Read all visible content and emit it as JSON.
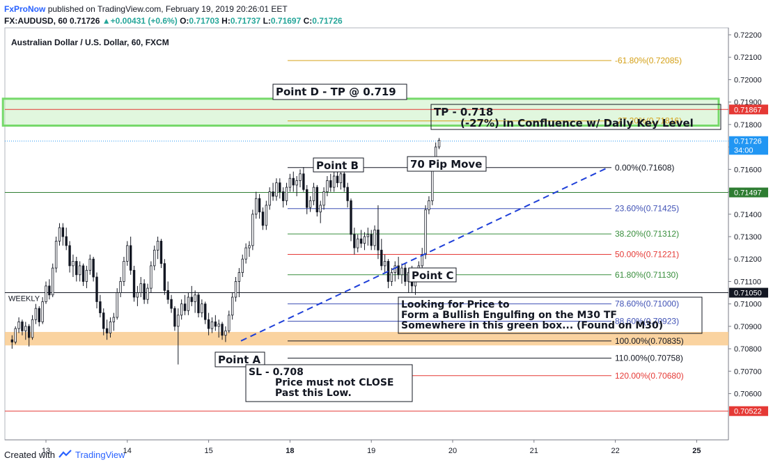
{
  "header": {
    "brand": "FxProNow",
    "published": "published on TradingView.com, February 19, 2019 20:26:01 EET",
    "symbol": "FX:AUDUSD, 60",
    "last": "0.71726",
    "change": "+0.00431 (+0.6%)",
    "o_label": "O:",
    "o": "0.71703",
    "h_label": "H:",
    "h": "0.71737",
    "l_label": "L:",
    "l": "0.71697",
    "c_label": "C:",
    "c": "0.71726"
  },
  "footer": {
    "created_with": "Created with",
    "brand": "TradingView"
  },
  "chart_data": {
    "type": "candlestick",
    "title": "Australian Dollar / U.S. Dollar, 60, FXCM",
    "ylim": [
      0.7051,
      0.7224
    ],
    "y_ticks": [
      "0.72200",
      "0.72100",
      "0.72000",
      "0.71900",
      "0.71800",
      "0.71700",
      "0.71600",
      "0.71500",
      "0.71400",
      "0.71300",
      "0.71200",
      "0.71100",
      "0.71000",
      "0.70900",
      "0.70800",
      "0.70700",
      "0.70600"
    ],
    "x_ticks": [
      {
        "label": "13",
        "x": 0
      },
      {
        "label": "14",
        "x": 24
      },
      {
        "label": "15",
        "x": 48
      },
      {
        "label": "18",
        "x": 72
      },
      {
        "label": "19",
        "x": 96
      },
      {
        "label": "20",
        "x": 120
      },
      {
        "label": "21",
        "x": 144
      },
      {
        "label": "22",
        "x": 168
      },
      {
        "label": "25",
        "x": 192
      }
    ],
    "xlim": [
      -10.5,
      204
    ],
    "price_tags": [
      {
        "label": "0.71867",
        "value": 0.71867,
        "color": "#e53935"
      },
      {
        "label": "0.71726",
        "value": 0.71726,
        "color": "#2196f3"
      },
      {
        "label": "34:00",
        "value": 0.71687,
        "color": "#2196f3"
      },
      {
        "label": "0.71497",
        "value": 0.71497,
        "color": "#2e7d32"
      },
      {
        "label": "0.71050",
        "value": 0.7105,
        "color": "#131722"
      },
      {
        "label": "0.70522",
        "value": 0.70522,
        "color": "#e53935"
      }
    ],
    "fib_levels": [
      {
        "label": "-61.80%(0.72085)",
        "value": 0.72085,
        "color": "#d4a017"
      },
      {
        "label": "-27.20%(0.71816)",
        "value": 0.71816,
        "color": "#d4a017"
      },
      {
        "label": "0.00%(0.71608)",
        "value": 0.71608,
        "color": "#131722"
      },
      {
        "label": "23.60%(0.71425)",
        "value": 0.71425,
        "color": "#3f51b5"
      },
      {
        "label": "38.20%(0.71312)",
        "value": 0.71312,
        "color": "#388e3c"
      },
      {
        "label": "50.00%(0.71221)",
        "value": 0.71221,
        "color": "#e53935"
      },
      {
        "label": "61.80%(0.71130)",
        "value": 0.7113,
        "color": "#388e3c"
      },
      {
        "label": "78.60%(0.71000)",
        "value": 0.71,
        "color": "#3f51b5"
      },
      {
        "label": "88.60%(0.70923)",
        "value": 0.70923,
        "color": "#3f51b5"
      },
      {
        "label": "100.00%(0.70835)",
        "value": 0.70835,
        "color": "#131722"
      },
      {
        "label": "110.00%(0.70758)",
        "value": 0.70758,
        "color": "#131722"
      },
      {
        "label": "120.00%(0.70680)",
        "value": 0.7068,
        "color": "#e53935"
      }
    ],
    "fib_x": [
      60,
      120
    ],
    "horizontal_lines": [
      {
        "value": 0.71867,
        "color": "#e53935"
      },
      {
        "value": 0.71726,
        "color": "#2196f3",
        "dotted": true
      },
      {
        "value": 0.71497,
        "color": "#2e7d32"
      },
      {
        "value": 0.7105,
        "color": "#131722"
      },
      {
        "value": 0.70522,
        "color": "#e53935"
      }
    ],
    "weekly_label": "WEEKLY",
    "weekly_zone": [
      0.70815,
      0.70875
    ],
    "green_zone": {
      "x": [
        -9,
        203
      ],
      "y": [
        0.71795,
        0.71915
      ]
    },
    "trendline": {
      "from": [
        60,
        0.70835
      ],
      "to": [
        166,
        0.71608
      ]
    },
    "annotations": [
      {
        "text": "Point D - TP @ 0.719",
        "x": 66,
        "y": 0.7194
      },
      {
        "text": "TP - 0.718",
        "x": 121,
        "y": 0.7188
      },
      {
        "text": "(-27%) in Confluence w/ Daily Key Level",
        "x": 121,
        "y": 0.7182
      },
      {
        "text": "Point B",
        "x": 87,
        "y": 0.7163
      },
      {
        "text": "70 Pip Move",
        "x": 114,
        "y": 0.7164
      },
      {
        "text": "Point C",
        "x": 114,
        "y": 0.71155
      },
      {
        "text": "Looking for Price to",
        "x": 110,
        "y": 0.7103
      },
      {
        "text": "Form a Bullish Engulfing on the M30 TF",
        "x": 110,
        "y": 0.71005
      },
      {
        "text": "Somewhere in this green box... (Found on M30)",
        "x": 110,
        "y": 0.7098
      },
      {
        "text": "Point A",
        "x": 53,
        "y": 0.70805
      },
      {
        "text": "SL - 0.708",
        "x": 61,
        "y": 0.70765
      },
      {
        "text": "Price must not CLOSE",
        "x": 61,
        "y": 0.70735
      },
      {
        "text": "Past this Low.",
        "x": 61,
        "y": 0.7071
      }
    ],
    "candles": [
      [
        -10,
        0.7084,
        0.7086,
        0.708,
        0.7083
      ],
      [
        -9,
        0.7083,
        0.709,
        0.7082,
        0.7089
      ],
      [
        -8,
        0.7089,
        0.7094,
        0.7087,
        0.7092
      ],
      [
        -7,
        0.7092,
        0.7093,
        0.7086,
        0.7088
      ],
      [
        -6,
        0.7088,
        0.7092,
        0.7084,
        0.709
      ],
      [
        -5,
        0.709,
        0.7091,
        0.7081,
        0.7085
      ],
      [
        -4,
        0.7085,
        0.7095,
        0.7084,
        0.7093
      ],
      [
        -3,
        0.7093,
        0.71,
        0.7091,
        0.7098
      ],
      [
        -2,
        0.7098,
        0.7099,
        0.709,
        0.7092
      ],
      [
        -1,
        0.7092,
        0.7103,
        0.7091,
        0.7101
      ],
      [
        0,
        0.7101,
        0.711,
        0.71,
        0.7108
      ],
      [
        1,
        0.7108,
        0.7111,
        0.7102,
        0.7104
      ],
      [
        2,
        0.7104,
        0.7118,
        0.7103,
        0.7116
      ],
      [
        3,
        0.7116,
        0.713,
        0.7114,
        0.7128
      ],
      [
        4,
        0.7128,
        0.7136,
        0.7126,
        0.7134
      ],
      [
        5,
        0.7134,
        0.7136,
        0.7126,
        0.713
      ],
      [
        6,
        0.713,
        0.7134,
        0.7124,
        0.7126
      ],
      [
        7,
        0.7126,
        0.7128,
        0.7114,
        0.7117
      ],
      [
        8,
        0.7117,
        0.7122,
        0.7112,
        0.7119
      ],
      [
        9,
        0.7119,
        0.7121,
        0.711,
        0.7113
      ],
      [
        10,
        0.7113,
        0.7119,
        0.711,
        0.7117
      ],
      [
        11,
        0.7117,
        0.7118,
        0.7108,
        0.711
      ],
      [
        12,
        0.711,
        0.7117,
        0.7107,
        0.7115
      ],
      [
        13,
        0.7115,
        0.7122,
        0.7113,
        0.712
      ],
      [
        14,
        0.712,
        0.7121,
        0.711,
        0.7112
      ],
      [
        15,
        0.7112,
        0.7114,
        0.7098,
        0.7101
      ],
      [
        16,
        0.7101,
        0.7104,
        0.7094,
        0.7096
      ],
      [
        17,
        0.7096,
        0.7098,
        0.7086,
        0.7089
      ],
      [
        18,
        0.7089,
        0.7093,
        0.7084,
        0.7087
      ],
      [
        19,
        0.7087,
        0.7094,
        0.7085,
        0.7092
      ],
      [
        20,
        0.7092,
        0.7096,
        0.7088,
        0.7094
      ],
      [
        21,
        0.7094,
        0.7107,
        0.7093,
        0.7105
      ],
      [
        22,
        0.7105,
        0.7112,
        0.7103,
        0.711
      ],
      [
        23,
        0.711,
        0.7121,
        0.7108,
        0.7119
      ],
      [
        24,
        0.7119,
        0.7128,
        0.7117,
        0.7126
      ],
      [
        25,
        0.7126,
        0.713,
        0.7113,
        0.7115
      ],
      [
        26,
        0.7115,
        0.7117,
        0.7101,
        0.7103
      ],
      [
        27,
        0.7103,
        0.7108,
        0.7099,
        0.7105
      ],
      [
        28,
        0.7105,
        0.7112,
        0.7103,
        0.7109
      ],
      [
        29,
        0.7109,
        0.7111,
        0.71,
        0.7102
      ],
      [
        30,
        0.7102,
        0.7109,
        0.71,
        0.7107
      ],
      [
        31,
        0.7107,
        0.7119,
        0.7105,
        0.7117
      ],
      [
        32,
        0.7117,
        0.7126,
        0.7115,
        0.7124
      ],
      [
        33,
        0.7124,
        0.713,
        0.712,
        0.7128
      ],
      [
        34,
        0.7128,
        0.7129,
        0.7116,
        0.7118
      ],
      [
        35,
        0.7118,
        0.712,
        0.7104,
        0.7106
      ],
      [
        36,
        0.7106,
        0.711,
        0.71,
        0.7102
      ],
      [
        37,
        0.7102,
        0.7104,
        0.7096,
        0.7098
      ],
      [
        38,
        0.7098,
        0.7099,
        0.7088,
        0.709
      ],
      [
        39,
        0.709,
        0.7098,
        0.7073,
        0.7095
      ],
      [
        40,
        0.7095,
        0.7102,
        0.7093,
        0.71
      ],
      [
        41,
        0.71,
        0.7104,
        0.7095,
        0.7097
      ],
      [
        42,
        0.7097,
        0.7105,
        0.7095,
        0.7103
      ],
      [
        43,
        0.7103,
        0.7108,
        0.7099,
        0.7101
      ],
      [
        44,
        0.7101,
        0.7106,
        0.7096,
        0.7104
      ],
      [
        45,
        0.7104,
        0.7105,
        0.7094,
        0.7096
      ],
      [
        46,
        0.7096,
        0.7102,
        0.7094,
        0.71
      ],
      [
        47,
        0.71,
        0.7101,
        0.7091,
        0.7093
      ],
      [
        48,
        0.7093,
        0.7096,
        0.7086,
        0.7089
      ],
      [
        49,
        0.7089,
        0.7094,
        0.7087,
        0.7092
      ],
      [
        50,
        0.7092,
        0.7095,
        0.7088,
        0.709
      ],
      [
        51,
        0.709,
        0.7093,
        0.7085,
        0.7091
      ],
      [
        52,
        0.7091,
        0.7092,
        0.7084,
        0.7086
      ],
      [
        53,
        0.7086,
        0.709,
        0.7083,
        0.7088
      ],
      [
        54,
        0.7088,
        0.7097,
        0.7087,
        0.7095
      ],
      [
        55,
        0.7095,
        0.7105,
        0.7093,
        0.7103
      ],
      [
        56,
        0.7103,
        0.7112,
        0.7101,
        0.711
      ],
      [
        57,
        0.711,
        0.7116,
        0.7103,
        0.7114
      ],
      [
        58,
        0.7114,
        0.7122,
        0.7112,
        0.712
      ],
      [
        59,
        0.712,
        0.7127,
        0.7118,
        0.7125
      ],
      [
        60,
        0.7125,
        0.7128,
        0.7121,
        0.7126
      ],
      [
        61,
        0.7126,
        0.7142,
        0.7124,
        0.714
      ],
      [
        62,
        0.714,
        0.715,
        0.7138,
        0.7147
      ],
      [
        63,
        0.7147,
        0.7149,
        0.7138,
        0.7141
      ],
      [
        64,
        0.7141,
        0.7143,
        0.7133,
        0.7135
      ],
      [
        65,
        0.7135,
        0.7146,
        0.7133,
        0.7144
      ],
      [
        66,
        0.7144,
        0.7152,
        0.7142,
        0.715
      ],
      [
        67,
        0.715,
        0.7154,
        0.7146,
        0.7148
      ],
      [
        68,
        0.7148,
        0.7156,
        0.7146,
        0.7154
      ],
      [
        69,
        0.7154,
        0.7156,
        0.7147,
        0.715
      ],
      [
        70,
        0.715,
        0.7152,
        0.7143,
        0.7146
      ],
      [
        71,
        0.7146,
        0.7154,
        0.7144,
        0.7152
      ],
      [
        72,
        0.7152,
        0.7158,
        0.715,
        0.7156
      ],
      [
        73,
        0.7156,
        0.7159,
        0.715,
        0.7153
      ],
      [
        74,
        0.7153,
        0.7157,
        0.7148,
        0.7155
      ],
      [
        75,
        0.7155,
        0.716,
        0.7152,
        0.7158
      ],
      [
        76,
        0.7158,
        0.7161,
        0.715,
        0.7151
      ],
      [
        77,
        0.7151,
        0.7153,
        0.714,
        0.7143
      ],
      [
        78,
        0.7143,
        0.7148,
        0.7141,
        0.7146
      ],
      [
        79,
        0.7146,
        0.7154,
        0.7144,
        0.7152
      ],
      [
        80,
        0.7152,
        0.7153,
        0.7139,
        0.7141
      ],
      [
        81,
        0.7141,
        0.7146,
        0.7136,
        0.7144
      ],
      [
        82,
        0.7144,
        0.7152,
        0.7142,
        0.715
      ],
      [
        83,
        0.715,
        0.7157,
        0.7148,
        0.7155
      ],
      [
        84,
        0.7155,
        0.7158,
        0.715,
        0.7152
      ],
      [
        85,
        0.7152,
        0.7159,
        0.715,
        0.7157
      ],
      [
        86,
        0.7157,
        0.716,
        0.7152,
        0.7154
      ],
      [
        87,
        0.7154,
        0.716,
        0.7151,
        0.7158
      ],
      [
        88,
        0.7158,
        0.7161,
        0.715,
        0.7152
      ],
      [
        89,
        0.7152,
        0.7154,
        0.7143,
        0.7146
      ],
      [
        90,
        0.7146,
        0.7147,
        0.7128,
        0.7131
      ],
      [
        91,
        0.7131,
        0.7134,
        0.7122,
        0.7125
      ],
      [
        92,
        0.7125,
        0.7131,
        0.7123,
        0.7129
      ],
      [
        93,
        0.7129,
        0.7133,
        0.7125,
        0.7127
      ],
      [
        94,
        0.7127,
        0.7132,
        0.7124,
        0.713
      ],
      [
        95,
        0.713,
        0.7134,
        0.7126,
        0.7131
      ],
      [
        96,
        0.7131,
        0.7133,
        0.7124,
        0.7126
      ],
      [
        97,
        0.7126,
        0.7135,
        0.7124,
        0.7133
      ],
      [
        98,
        0.7133,
        0.7144,
        0.712,
        0.7124
      ],
      [
        99,
        0.7124,
        0.7129,
        0.7115,
        0.7117
      ],
      [
        100,
        0.7117,
        0.7122,
        0.7114,
        0.7119
      ],
      [
        101,
        0.7119,
        0.712,
        0.7107,
        0.711
      ],
      [
        102,
        0.711,
        0.7116,
        0.7108,
        0.7114
      ],
      [
        103,
        0.7114,
        0.7119,
        0.711,
        0.7117
      ],
      [
        104,
        0.7117,
        0.7121,
        0.7111,
        0.7113
      ],
      [
        105,
        0.7113,
        0.7118,
        0.7109,
        0.7116
      ],
      [
        106,
        0.7116,
        0.7118,
        0.7108,
        0.711
      ],
      [
        107,
        0.711,
        0.7116,
        0.7105,
        0.7114
      ],
      [
        108,
        0.7114,
        0.7117,
        0.7105,
        0.7108
      ],
      [
        109,
        0.7108,
        0.7115,
        0.7104,
        0.7112
      ],
      [
        110,
        0.7112,
        0.7119,
        0.711,
        0.7117
      ],
      [
        111,
        0.7117,
        0.7125,
        0.7115,
        0.7122
      ],
      [
        112,
        0.7122,
        0.7144,
        0.712,
        0.7142
      ],
      [
        113,
        0.7142,
        0.7148,
        0.714,
        0.7146
      ],
      [
        114,
        0.7146,
        0.7165,
        0.7144,
        0.7163
      ],
      [
        115,
        0.7163,
        0.7172,
        0.7161,
        0.717
      ],
      [
        116,
        0.717,
        0.7174,
        0.7169,
        0.7173
      ]
    ]
  }
}
